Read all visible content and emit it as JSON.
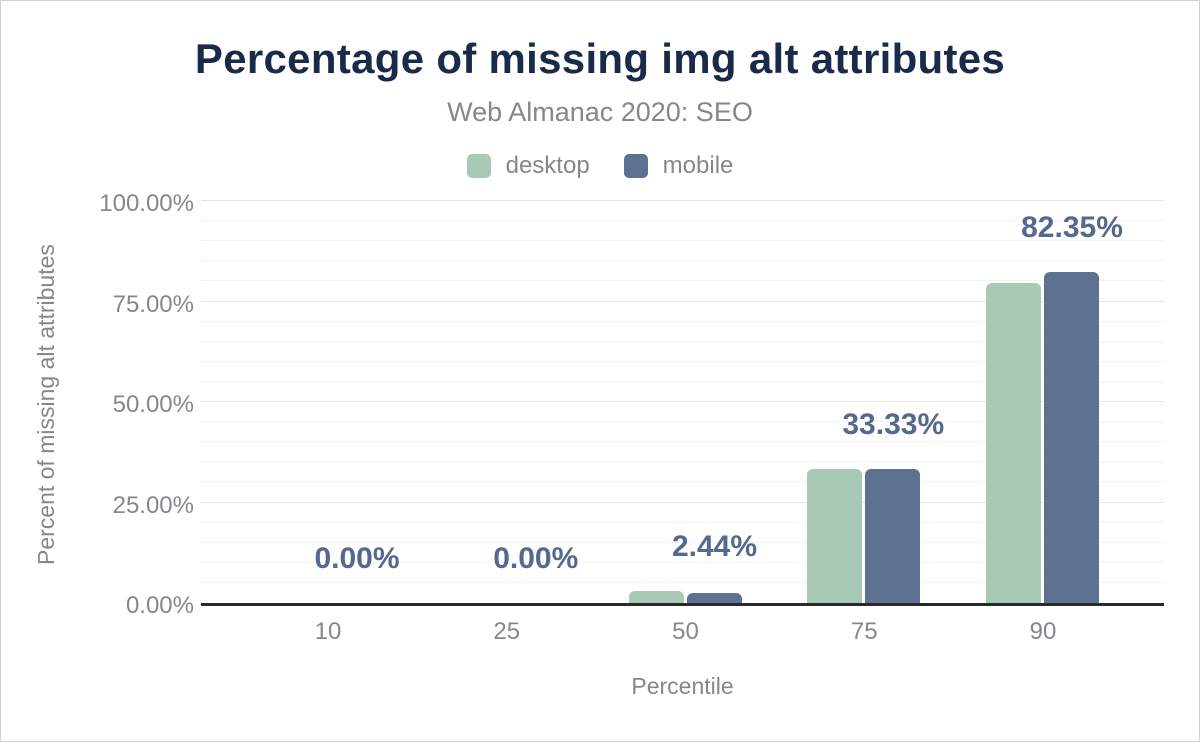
{
  "header": {
    "title": "Percentage of missing img alt attributes",
    "subtitle": "Web Almanac 2020: SEO"
  },
  "legend": {
    "items": [
      {
        "label": "desktop",
        "color": "#a7c9b5"
      },
      {
        "label": "mobile",
        "color": "#5f7190"
      }
    ]
  },
  "chart_data": {
    "type": "bar",
    "title": "Percentage of missing img alt attributes",
    "subtitle": "Web Almanac 2020: SEO",
    "categories": [
      "10",
      "25",
      "50",
      "75",
      "90"
    ],
    "series": [
      {
        "name": "desktop",
        "color": "#a7c9b5",
        "values": [
          0,
          0,
          2.99,
          33.33,
          79.6
        ]
      },
      {
        "name": "mobile",
        "color": "#5f7190",
        "values": [
          0,
          0,
          2.44,
          33.33,
          82.35
        ]
      }
    ],
    "bar_labels": [
      "0.00%",
      "0.00%",
      "2.44%",
      "33.33%",
      "82.35%"
    ],
    "xlabel": "Percentile",
    "ylabel": "Percent of missing alt attributes",
    "yticks": [
      {
        "label": "0.00%",
        "value": 0
      },
      {
        "label": "25.00%",
        "value": 25
      },
      {
        "label": "50.00%",
        "value": 50
      },
      {
        "label": "75.00%",
        "value": 75
      },
      {
        "label": "100.00%",
        "value": 100
      }
    ],
    "ylim": [
      0,
      100
    ],
    "grid": {
      "minor_step": 5,
      "major_step": 25,
      "visible": true
    },
    "legend_position": "top"
  },
  "colors": {
    "title": "#1a2b49",
    "axis_text": "#85878b",
    "value_label": "#55688e",
    "axis_line": "#2a2a2a",
    "grid_major": "#e4e4e4",
    "grid_minor": "#f3f3f3",
    "background": "#ffffff"
  }
}
